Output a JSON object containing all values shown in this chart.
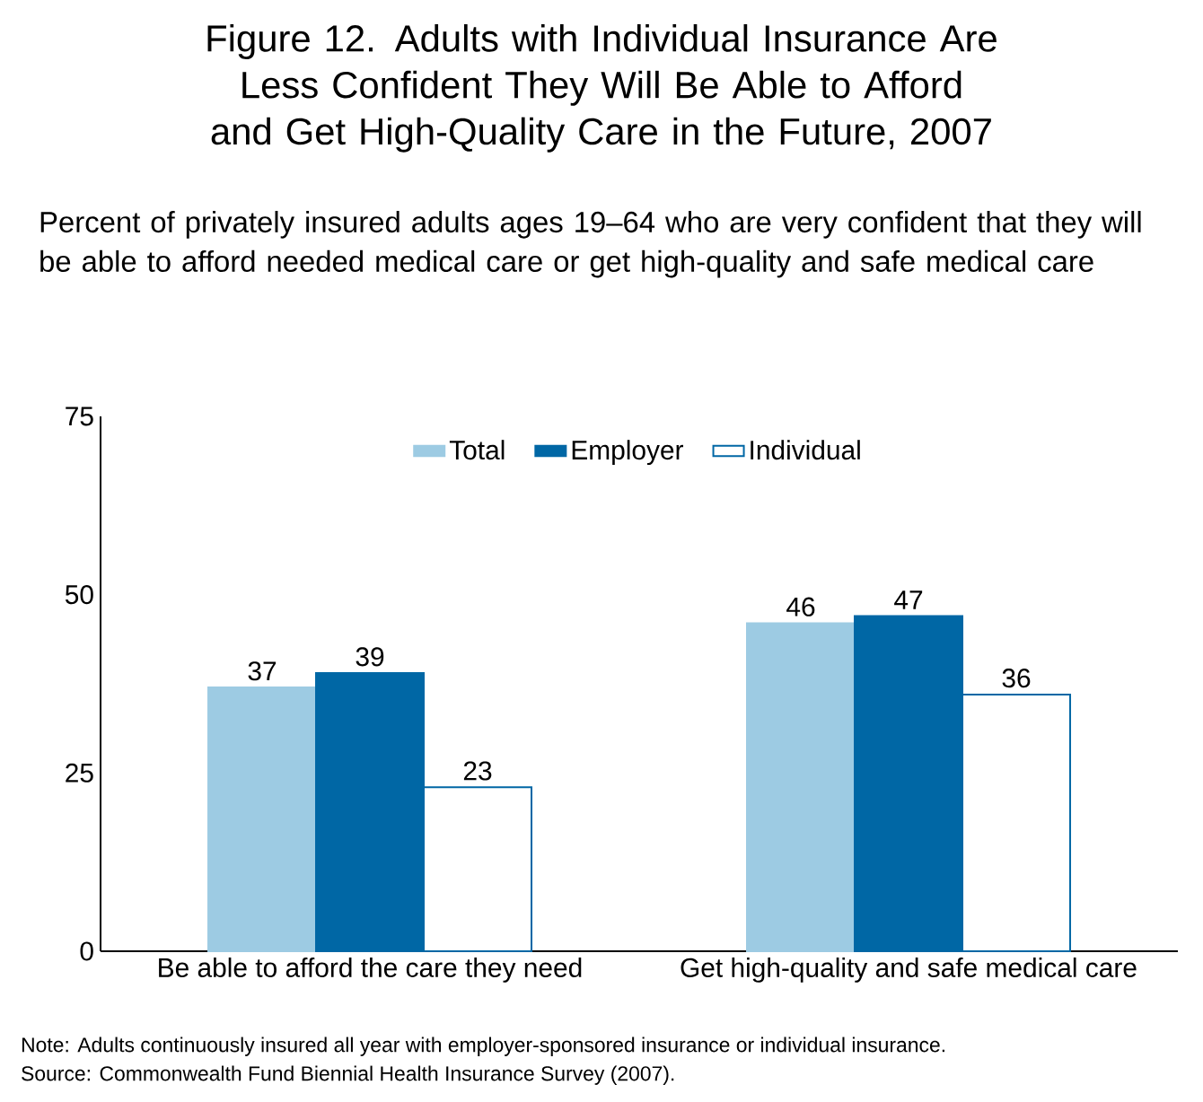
{
  "chart_data": {
    "type": "bar",
    "title": "Figure 12. Adults with Individual Insurance Are Less Confident They Will Be Able to Afford and Get High-Quality Care in the Future, 2007",
    "subtitle": "Percent of privately insured adults ages 19–64 who are very confident that they will be able to afford needed medical care or get high-quality and safe medical care",
    "categories": [
      "Be able to afford the care they need",
      "Get high-quality and safe medical care"
    ],
    "series": [
      {
        "name": "Total",
        "color": "#9dcbe3",
        "values": [
          37,
          46
        ]
      },
      {
        "name": "Employer",
        "color": "#0067a5",
        "values": [
          39,
          47
        ]
      },
      {
        "name": "Individual",
        "color": "#ffffff",
        "values": [
          23,
          36
        ]
      }
    ],
    "ylim": [
      0,
      75
    ],
    "yticks": [
      0,
      25,
      50,
      75
    ],
    "grid": false,
    "legend": "top",
    "data_labels": true,
    "annotations": [
      "Note: Adults continuously insured all year with employer-sponsored insurance or individual insurance.",
      "Source: Commonwealth Fund Biennial Health Insurance Survey (2007)."
    ]
  }
}
